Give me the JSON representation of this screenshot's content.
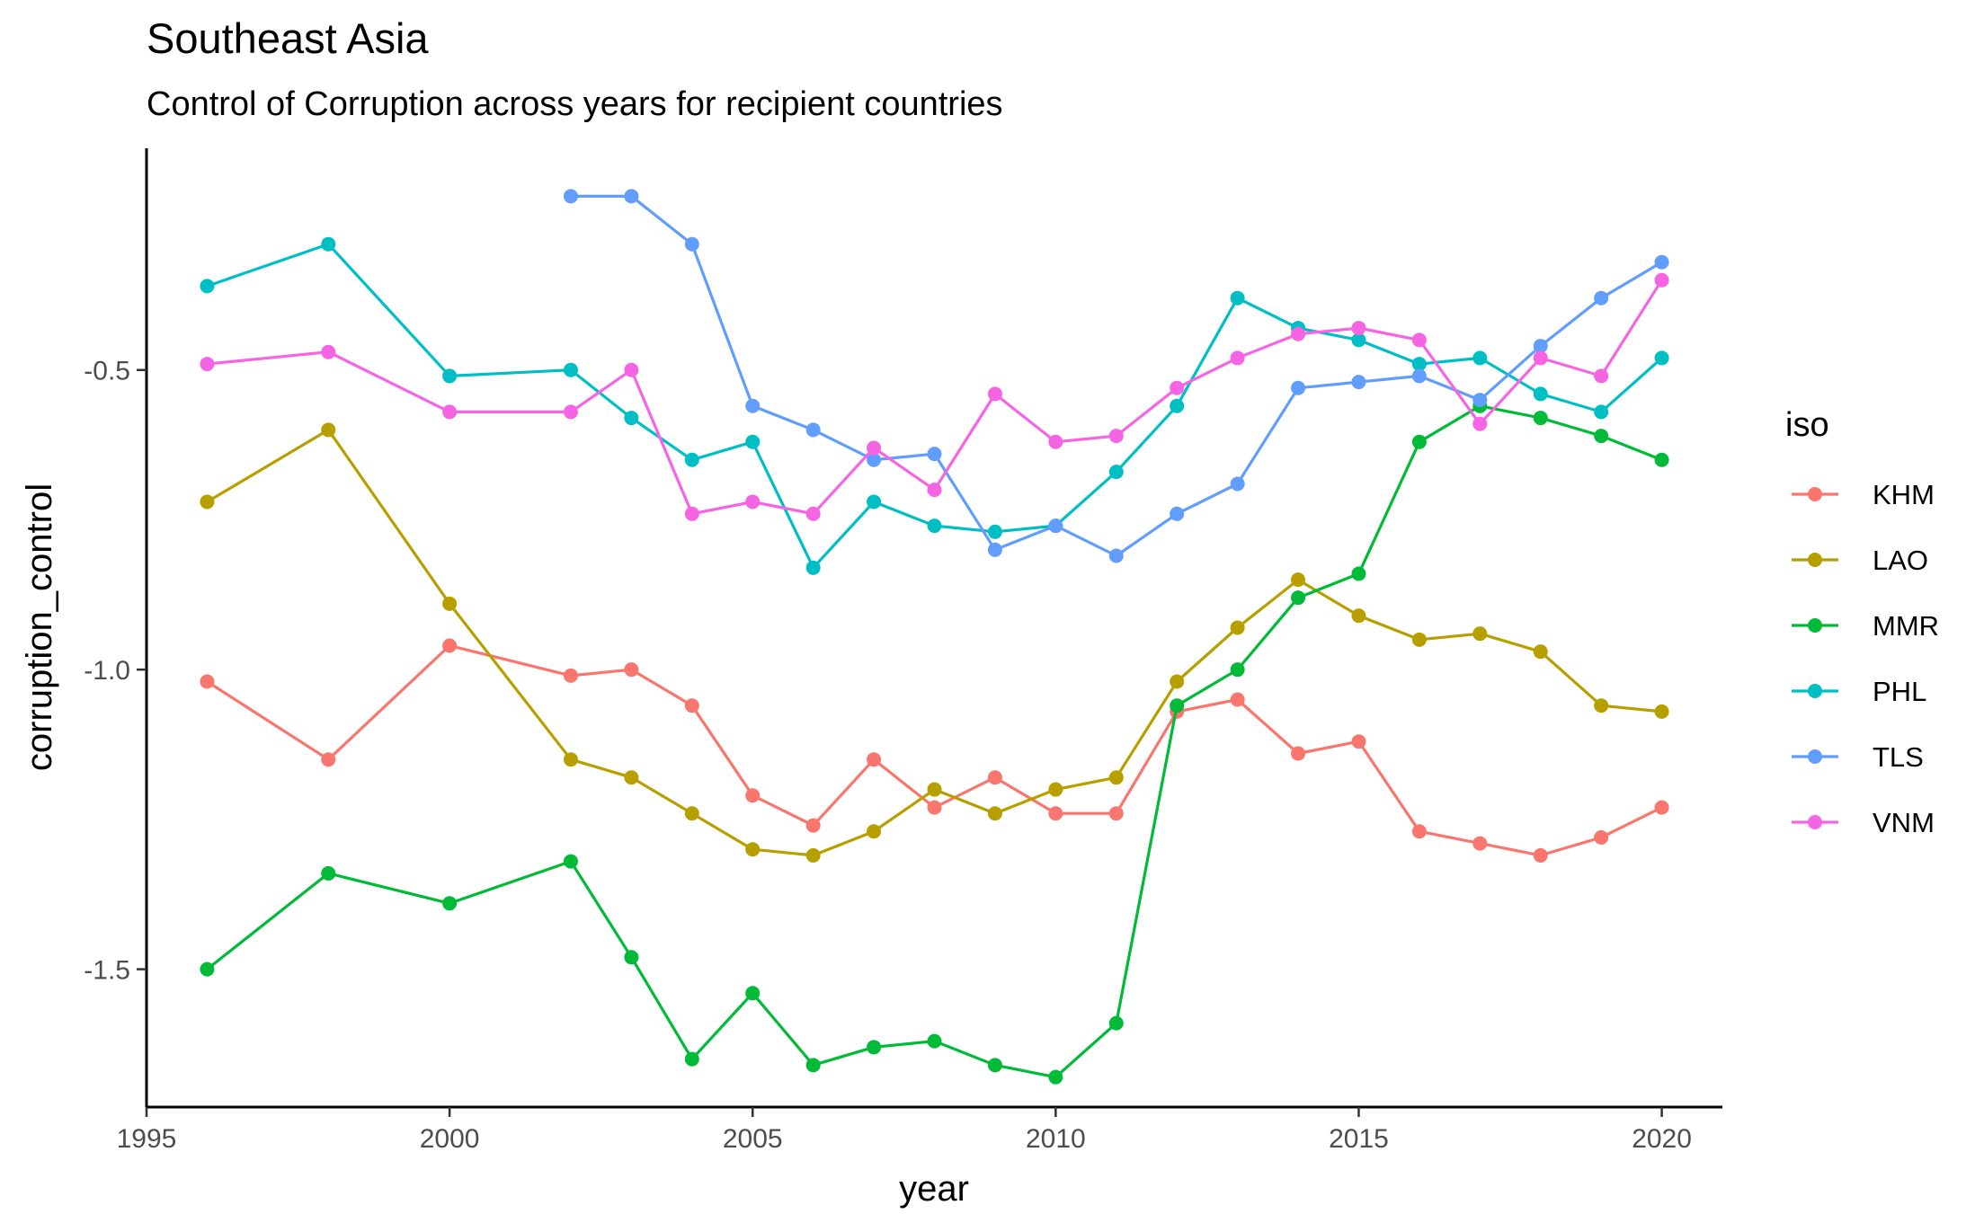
{
  "chart_data": {
    "type": "line",
    "title": "Southeast Asia",
    "subtitle": "Control of Corruption across years for recipient countries",
    "xlabel": "year",
    "ylabel": "corruption_control",
    "xlim": [
      1995,
      2021
    ],
    "ylim": [
      -1.73,
      -0.13
    ],
    "xticks": [
      1995,
      2000,
      2005,
      2010,
      2015,
      2020
    ],
    "yticks": [
      -1.5,
      -1.0,
      -0.5
    ],
    "ytick_labels": [
      "-1.5",
      "-1.0",
      "-0.5"
    ],
    "grid": false,
    "legend_title": "iso",
    "legend_position": "right",
    "series": [
      {
        "name": "KHM",
        "color": "#F8766D",
        "x": [
          1996,
          1998,
          2000,
          2002,
          2003,
          2004,
          2005,
          2006,
          2007,
          2008,
          2009,
          2010,
          2011,
          2012,
          2013,
          2014,
          2015,
          2016,
          2017,
          2018,
          2019,
          2020
        ],
        "y": [
          -1.02,
          -1.15,
          -0.96,
          -1.01,
          -1.0,
          -1.06,
          -1.21,
          -1.26,
          -1.15,
          -1.23,
          -1.18,
          -1.24,
          -1.24,
          -1.07,
          -1.05,
          -1.14,
          -1.12,
          -1.27,
          -1.29,
          -1.31,
          -1.28,
          -1.23
        ]
      },
      {
        "name": "LAO",
        "color": "#B79F00",
        "x": [
          1996,
          1998,
          2000,
          2002,
          2003,
          2004,
          2005,
          2006,
          2007,
          2008,
          2009,
          2010,
          2011,
          2012,
          2013,
          2014,
          2015,
          2016,
          2017,
          2018,
          2019,
          2020
        ],
        "y": [
          -0.72,
          -0.6,
          -0.89,
          -1.15,
          -1.18,
          -1.24,
          -1.3,
          -1.31,
          -1.27,
          -1.2,
          -1.24,
          -1.2,
          -1.18,
          -1.02,
          -0.93,
          -0.85,
          -0.91,
          -0.95,
          -0.94,
          -0.97,
          -1.06,
          -1.07
        ]
      },
      {
        "name": "MMR",
        "color": "#00BA38",
        "x": [
          1996,
          1998,
          2000,
          2002,
          2003,
          2004,
          2005,
          2006,
          2007,
          2008,
          2009,
          2010,
          2011,
          2012,
          2013,
          2014,
          2015,
          2016,
          2017,
          2018,
          2019,
          2020
        ],
        "y": [
          -1.5,
          -1.34,
          -1.39,
          -1.32,
          -1.48,
          -1.65,
          -1.54,
          -1.66,
          -1.63,
          -1.62,
          -1.66,
          -1.68,
          -1.59,
          -1.06,
          -1.0,
          -0.88,
          -0.84,
          -0.62,
          -0.56,
          -0.58,
          -0.61,
          -0.65
        ]
      },
      {
        "name": "PHL",
        "color": "#00BFC4",
        "x": [
          1996,
          1998,
          2000,
          2002,
          2003,
          2004,
          2005,
          2006,
          2007,
          2008,
          2009,
          2010,
          2011,
          2012,
          2013,
          2014,
          2015,
          2016,
          2017,
          2018,
          2019,
          2020
        ],
        "y": [
          -0.36,
          -0.29,
          -0.51,
          -0.5,
          -0.58,
          -0.65,
          -0.62,
          -0.83,
          -0.72,
          -0.76,
          -0.77,
          -0.76,
          -0.67,
          -0.56,
          -0.38,
          -0.43,
          -0.45,
          -0.49,
          -0.48,
          -0.54,
          -0.57,
          -0.48
        ]
      },
      {
        "name": "TLS",
        "color": "#619CFF",
        "x": [
          2002,
          2003,
          2004,
          2005,
          2006,
          2007,
          2008,
          2009,
          2010,
          2011,
          2012,
          2013,
          2014,
          2015,
          2016,
          2017,
          2018,
          2019,
          2020
        ],
        "y": [
          -0.21,
          -0.21,
          -0.29,
          -0.56,
          -0.6,
          -0.65,
          -0.64,
          -0.8,
          -0.76,
          -0.81,
          -0.74,
          -0.69,
          -0.53,
          -0.52,
          -0.51,
          -0.55,
          -0.46,
          -0.38,
          -0.32
        ]
      },
      {
        "name": "VNM",
        "color": "#F564E3",
        "x": [
          1996,
          1998,
          2000,
          2002,
          2003,
          2004,
          2005,
          2006,
          2007,
          2008,
          2009,
          2010,
          2011,
          2012,
          2013,
          2014,
          2015,
          2016,
          2017,
          2018,
          2019,
          2020
        ],
        "y": [
          -0.49,
          -0.47,
          -0.57,
          -0.57,
          -0.5,
          -0.74,
          -0.72,
          -0.74,
          -0.63,
          -0.7,
          -0.54,
          -0.62,
          -0.61,
          -0.53,
          -0.48,
          -0.44,
          -0.43,
          -0.45,
          -0.59,
          -0.48,
          -0.51,
          -0.35
        ]
      }
    ]
  }
}
